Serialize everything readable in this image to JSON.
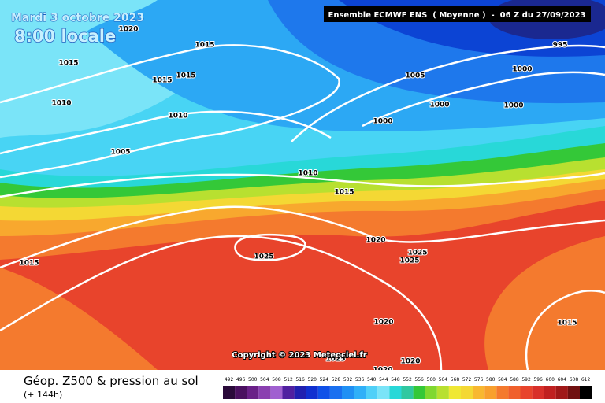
{
  "header": {
    "date": "Mardi 3 octobre 2023",
    "time": "8:00 locale",
    "model": "Ensemble ECMWF ENS  ( Moyenne )  -  06 Z du 27/09/2023"
  },
  "copyright": "Copyright © 2023 Meteociel.fr",
  "isobar_labels": [
    "1020",
    "1015",
    "1015",
    "1015",
    "1015",
    "1010",
    "1010",
    "1005",
    "1005",
    "1000",
    "995",
    "1000",
    "1000",
    "1000",
    "1010",
    "1015",
    "1020",
    "1025",
    "1025",
    "1025",
    "1015",
    "1020",
    "1015",
    "1025",
    "1020",
    "1020"
  ],
  "legend": {
    "title": "Géop. Z500 & pression au sol",
    "lead": "(+ 144h)",
    "scale": [
      "492",
      "496",
      "500",
      "504",
      "508",
      "512",
      "516",
      "520",
      "524",
      "528",
      "532",
      "536",
      "540",
      "544",
      "548",
      "552",
      "556",
      "560",
      "564",
      "568",
      "572",
      "576",
      "580",
      "584",
      "588",
      "592",
      "596",
      "600",
      "604",
      "608",
      "612"
    ]
  }
}
